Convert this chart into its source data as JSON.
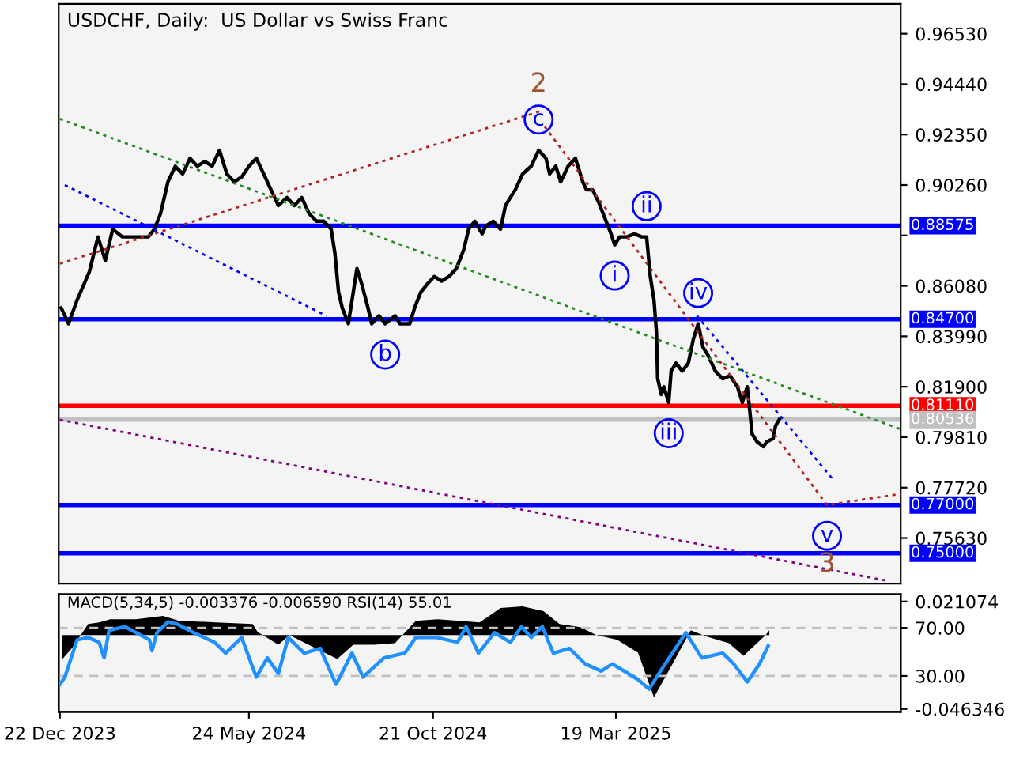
{
  "chart_data": [
    {
      "type": "line",
      "title": "USDCHF, Daily:  US Dollar vs Swiss Franc",
      "xlim": [
        "2023-12-21",
        "2025-11-06"
      ],
      "ylim": [
        0.7374,
        0.9777
      ],
      "yticks": [
        {
          "value": 0.9653,
          "label": "0.96530"
        },
        {
          "value": 0.9444,
          "label": "0.94440"
        },
        {
          "value": 0.9235,
          "label": "0.92350"
        },
        {
          "value": 0.9026,
          "label": "0.90260"
        },
        {
          "value": 0.8817,
          "label": null
        },
        {
          "value": 0.8608,
          "label": "0.86080"
        },
        {
          "value": 0.8399,
          "label": "0.83990"
        },
        {
          "value": 0.819,
          "label": "0.81900"
        },
        {
          "value": 0.7981,
          "label": "0.79810"
        },
        {
          "value": 0.7772,
          "label": "0.77720"
        },
        {
          "value": 0.7563,
          "label": "0.75630"
        }
      ],
      "tick_labels": "y",
      "grid": false,
      "legend": false,
      "series": [
        {
          "color": "#000000",
          "line_style": "solid",
          "x": [
            "2023-12-23",
            "2023-12-29",
            "2024-01-05",
            "2024-01-15",
            "2024-01-22",
            "2024-01-28",
            "2024-02-03",
            "2024-02-11",
            "2024-02-18",
            "2024-02-25",
            "2024-03-03",
            "2024-03-08",
            "2024-03-13",
            "2024-03-19",
            "2024-03-25",
            "2024-03-31",
            "2024-04-06",
            "2024-04-12",
            "2024-04-18",
            "2024-04-24",
            "2024-04-30",
            "2024-05-06",
            "2024-05-12",
            "2024-05-18",
            "2024-05-24",
            "2024-05-30",
            "2024-06-05",
            "2024-06-11",
            "2024-06-17",
            "2024-06-24",
            "2024-06-30",
            "2024-07-06",
            "2024-07-12",
            "2024-07-18",
            "2024-07-24",
            "2024-07-30",
            "2024-08-02",
            "2024-08-05",
            "2024-08-08",
            "2024-08-13",
            "2024-08-17",
            "2024-08-20",
            "2024-08-24",
            "2024-08-29",
            "2024-09-01",
            "2024-09-07",
            "2024-09-12",
            "2024-09-20",
            "2024-09-24",
            "2024-10-02",
            "2024-10-06",
            "2024-10-11",
            "2024-10-16",
            "2024-10-22",
            "2024-10-28",
            "2024-11-03",
            "2024-11-09",
            "2024-11-15",
            "2024-11-19",
            "2024-11-24",
            "2024-11-30",
            "2024-12-03",
            "2024-12-09",
            "2024-12-15",
            "2024-12-19",
            "2024-12-23",
            "2024-12-27",
            "2025-01-02",
            "2025-01-09",
            "2025-01-15",
            "2025-01-21",
            "2025-01-24",
            "2025-01-29",
            "2025-02-02",
            "2025-02-08",
            "2025-02-14",
            "2025-02-20",
            "2025-02-23",
            "2025-02-28",
            "2025-03-05",
            "2025-03-10",
            "2025-03-15",
            "2025-03-18",
            "2025-03-22",
            "2025-03-28",
            "2025-04-03",
            "2025-04-09",
            "2025-04-13",
            "2025-04-16",
            "2025-04-19",
            "2025-04-21",
            "2025-04-22",
            "2025-04-25",
            "2025-04-27",
            "2025-05-01",
            "2025-05-03",
            "2025-05-07",
            "2025-05-12",
            "2025-05-17",
            "2025-05-21",
            "2025-05-25",
            "2025-05-29",
            "2025-06-02",
            "2025-06-08",
            "2025-06-14",
            "2025-06-20",
            "2025-06-26",
            "2025-06-30",
            "2025-07-04",
            "2025-07-06",
            "2025-07-08",
            "2025-07-12",
            "2025-07-17",
            "2025-07-20",
            "2025-07-25",
            "2025-07-27",
            "2025-07-30"
          ],
          "values": [
            0.8517,
            0.8451,
            0.8549,
            0.8667,
            0.8811,
            0.8713,
            0.8843,
            0.8811,
            0.8811,
            0.8811,
            0.8811,
            0.8843,
            0.8908,
            0.9039,
            0.9104,
            0.9072,
            0.9137,
            0.9104,
            0.9124,
            0.9104,
            0.917,
            0.9072,
            0.9039,
            0.9059,
            0.9104,
            0.9137,
            0.9072,
            0.9006,
            0.8941,
            0.8974,
            0.8941,
            0.8974,
            0.8908,
            0.8876,
            0.8876,
            0.8843,
            0.8745,
            0.8582,
            0.8517,
            0.8451,
            0.8582,
            0.868,
            0.8614,
            0.8517,
            0.8451,
            0.8484,
            0.8451,
            0.8484,
            0.8451,
            0.8451,
            0.8517,
            0.8582,
            0.8614,
            0.8647,
            0.8628,
            0.8647,
            0.868,
            0.8758,
            0.8843,
            0.8876,
            0.8824,
            0.8856,
            0.8876,
            0.8843,
            0.8941,
            0.8974,
            0.9006,
            0.9072,
            0.9104,
            0.917,
            0.9137,
            0.9072,
            0.9104,
            0.9039,
            0.9104,
            0.9137,
            0.9039,
            0.9006,
            0.9006,
            0.8954,
            0.8889,
            0.8824,
            0.8778,
            0.8811,
            0.8811,
            0.8824,
            0.8811,
            0.8811,
            0.8647,
            0.8549,
            0.8419,
            0.8223,
            0.8158,
            0.819,
            0.8125,
            0.8255,
            0.8288,
            0.8255,
            0.8288,
            0.8386,
            0.8451,
            0.8353,
            0.8321,
            0.8255,
            0.8223,
            0.8236,
            0.819,
            0.8125,
            0.819,
            0.8092,
            0.7994,
            0.7962,
            0.7942,
            0.7962,
            0.7975,
            0.8027,
            0.8054
          ]
        },
        {
          "color": "#228b22",
          "line_style": "dotted",
          "x": [
            "2023-12-22",
            "2025-11-06"
          ],
          "values": [
            0.93,
            0.8014
          ]
        },
        {
          "color": "#0000ff",
          "line_style": "dotted",
          "x": [
            "2023-12-26",
            "2024-07-26"
          ],
          "values": [
            0.9026,
            0.8484
          ]
        },
        {
          "color": "#b22222",
          "line_style": "dotted",
          "x": [
            "2023-12-22",
            "2025-01-17"
          ],
          "values": [
            0.87,
            0.9333
          ]
        },
        {
          "color": "#800080",
          "line_style": "dotted",
          "x": [
            "2023-12-22",
            "2025-10-25"
          ],
          "values": [
            0.8053,
            0.7387
          ]
        },
        {
          "color": "#b22222",
          "line_style": "dotted",
          "x": [
            "2025-01-20",
            "2025-09-07",
            "2025-11-06"
          ],
          "values": [
            0.9268,
            0.77,
            0.7746
          ]
        },
        {
          "color": "#0000ff",
          "line_style": "dotted",
          "x": [
            "2025-05-24",
            "2025-09-13"
          ],
          "values": [
            0.8484,
            0.7799
          ]
        }
      ],
      "ref_lines": [
        {
          "axis": "y",
          "value": 0.88575,
          "label": "0.88575",
          "color": "#0000ff"
        },
        {
          "axis": "y",
          "value": 0.847,
          "label": "0.84700",
          "color": "#0000ff"
        },
        {
          "axis": "y",
          "value": 0.8111,
          "label": "0.81110",
          "color": "#ff0000"
        },
        {
          "axis": "y",
          "value": 0.80536,
          "label": "0.80536",
          "color": "#c0c0c0"
        },
        {
          "axis": "y",
          "value": 0.77,
          "label": "0.77000",
          "color": "#0000ff"
        },
        {
          "axis": "y",
          "value": 0.75,
          "label": "0.75000",
          "color": "#0000ff"
        }
      ],
      "annotations": [
        {
          "text": "c",
          "x": "2025-01-15",
          "y": 0.917
        },
        {
          "text": "2",
          "x": "2025-01-15",
          "y": 0.917
        },
        {
          "text": "b",
          "x": "2024-09-12",
          "y": 0.8451
        },
        {
          "text": "i",
          "x": "2025-03-18",
          "y": 0.8778
        },
        {
          "text": "ii",
          "x": "2025-04-13",
          "y": 0.8811
        },
        {
          "text": "iii",
          "x": "2025-05-01",
          "y": 0.8125
        },
        {
          "text": "iv",
          "x": "2025-05-25",
          "y": 0.8451
        },
        {
          "text": "v",
          "x": "2025-09-07",
          "y": 0.77
        },
        {
          "text": "3",
          "x": "2025-09-07",
          "y": 0.77
        }
      ]
    },
    {
      "type": "area",
      "title": "MACD(5,34,5) -0.003376 -0.006590 RSI(14) 55.01",
      "xlim": [
        "2023-12-21",
        "2025-11-06"
      ],
      "xticks": [
        {
          "value": "2023-12-22",
          "label": "22 Dec 2023"
        },
        {
          "value": "2024-05-24",
          "label": "24 May 2024"
        },
        {
          "value": "2024-10-21",
          "label": "21 Oct 2024"
        },
        {
          "value": "2025-03-19",
          "label": "19 Mar 2025"
        }
      ],
      "ylim": [
        -0.0482,
        0.0256
      ],
      "yticks": [
        0.021074,
        {
          "value": -0.046346,
          "label": "-0.046346"
        }
      ],
      "y2lim": [
        0,
        98
      ],
      "y2ticks": [
        {
          "value": 70,
          "label": "70.00"
        },
        {
          "value": 30,
          "label": "30.00"
        }
      ],
      "grid": false,
      "legend": false,
      "ref_lines": [
        {
          "axis": "y2",
          "value": 70,
          "color": "#c0c0c0",
          "line_style": "dashed"
        },
        {
          "axis": "y2",
          "value": 30,
          "color": "#c0c0c0",
          "line_style": "dashed"
        }
      ],
      "series": [
        {
          "type": "area",
          "color": "#000000",
          "x": [
            "2023-12-24",
            "2024-01-01",
            "2024-01-14",
            "2024-01-23",
            "2024-02-01",
            "2024-02-22",
            "2024-03-15",
            "2024-03-28",
            "2024-04-27",
            "2024-05-27",
            "2024-05-31",
            "2024-06-17",
            "2024-06-26",
            "2024-07-09",
            "2024-08-04",
            "2024-08-17",
            "2024-09-03",
            "2024-09-20",
            "2024-10-07",
            "2024-10-25",
            "2024-11-28",
            "2024-12-15",
            "2025-01-02",
            "2025-01-19",
            "2025-02-01",
            "2025-02-18",
            "2025-03-03",
            "2025-03-20",
            "2025-04-06",
            "2025-04-19",
            "2025-05-02",
            "2025-05-19",
            "2025-06-01",
            "2025-06-19",
            "2025-07-01",
            "2025-07-19",
            "2025-07-22"
          ],
          "values": [
            -0.015,
            -0.008,
            0.007,
            0.008,
            0.01,
            0.01,
            0.012,
            0.009,
            0.008,
            0.007,
            0.002,
            -0.006,
            0.0,
            -0.005,
            -0.015,
            -0.006,
            -0.006,
            -0.005,
            0.009,
            0.01,
            0.008,
            0.017,
            0.018,
            0.015,
            0.007,
            0.005,
            0.0,
            -0.003,
            -0.011,
            -0.039,
            -0.021,
            0.003,
            -0.001,
            -0.005,
            -0.013,
            0.0,
            0.003
          ]
        },
        {
          "type": "line",
          "axis": "y2",
          "color": "#1e90ff",
          "line_style": "solid",
          "x": [
            "2023-12-22",
            "2023-12-26",
            "2024-01-05",
            "2024-01-14",
            "2024-01-23",
            "2024-01-27",
            "2024-01-31",
            "2024-02-13",
            "2024-03-04",
            "2024-03-06",
            "2024-03-10",
            "2024-03-19",
            "2024-03-27",
            "2024-04-09",
            "2024-04-26",
            "2024-05-05",
            "2024-05-18",
            "2024-05-30",
            "2024-06-08",
            "2024-06-17",
            "2024-06-25",
            "2024-07-08",
            "2024-07-21",
            "2024-08-03",
            "2024-08-16",
            "2024-08-25",
            "2024-09-11",
            "2024-09-28",
            "2024-10-07",
            "2024-10-24",
            "2024-11-10",
            "2024-11-17",
            "2024-11-27",
            "2024-12-10",
            "2024-12-23",
            "2025-01-01",
            "2025-01-09",
            "2025-01-18",
            "2025-01-27",
            "2025-02-09",
            "2025-02-22",
            "2025-03-07",
            "2025-03-16",
            "2025-03-29",
            "2025-04-06",
            "2025-04-15",
            "2025-04-23",
            "2025-05-15",
            "2025-05-28",
            "2025-06-14",
            "2025-06-23",
            "2025-07-04",
            "2025-07-14",
            "2025-07-21"
          ],
          "values": [
            23,
            29,
            60,
            62,
            58,
            45,
            68,
            71,
            60,
            51,
            66,
            75,
            73,
            66,
            58,
            49,
            62,
            29,
            45,
            32,
            62,
            49,
            53,
            23,
            49,
            29,
            45,
            49,
            62,
            62,
            58,
            71,
            49,
            66,
            58,
            71,
            62,
            71,
            49,
            53,
            40,
            34,
            40,
            32,
            27,
            19,
            32,
            66,
            45,
            49,
            40,
            25,
            40,
            55
          ]
        }
      ]
    }
  ]
}
